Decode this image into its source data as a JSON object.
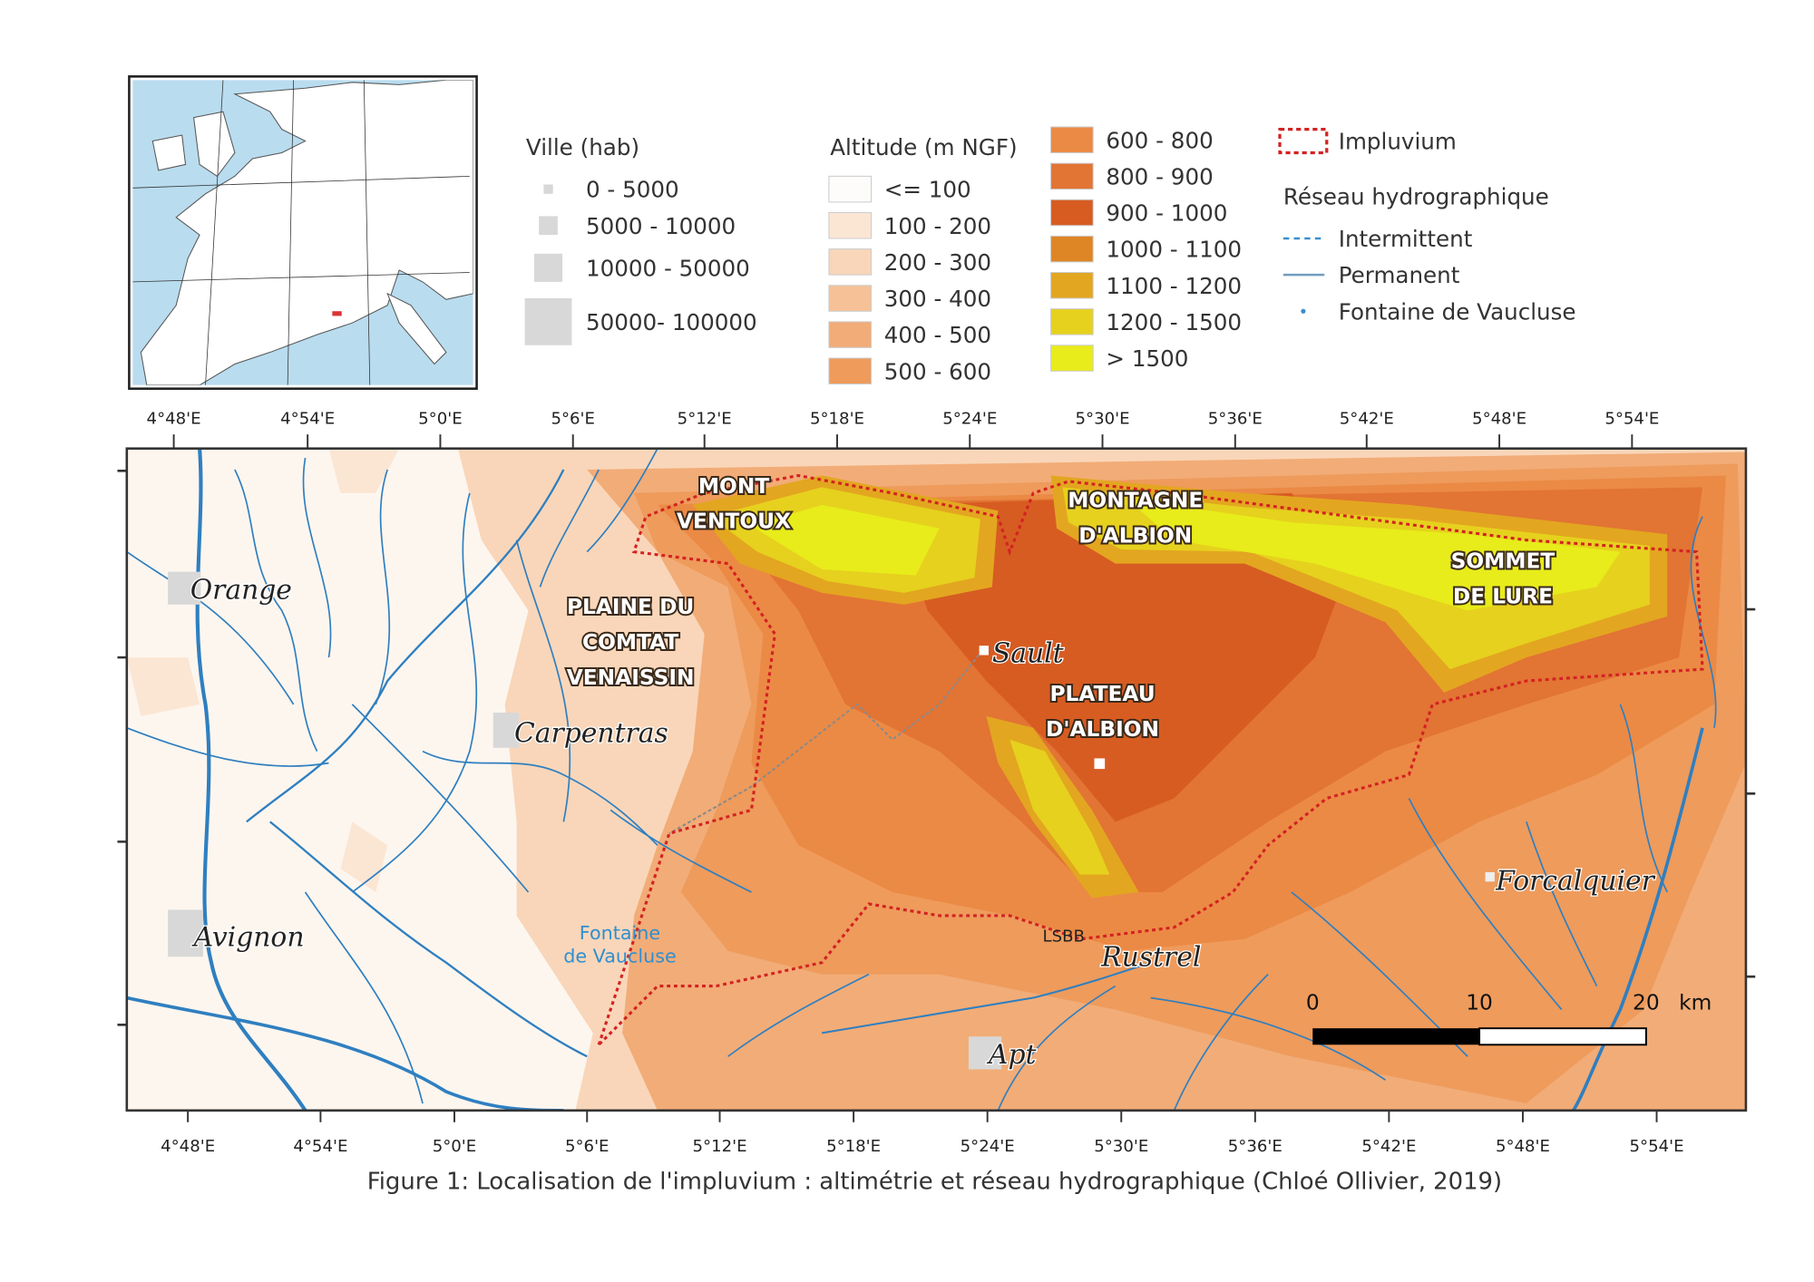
{
  "legend": {
    "ville": {
      "title": "Ville (hab)",
      "classes": [
        "0 - 5000",
        "5000 - 10000",
        "10000 - 50000",
        "50000- 100000"
      ]
    },
    "altitude": {
      "title": "Altitude (m NGF)",
      "classes": [
        {
          "label": "<= 100",
          "color": "#fdfcfb"
        },
        {
          "label": "100 - 200",
          "color": "#fbe6d4"
        },
        {
          "label": "200 - 300",
          "color": "#f9d6b9"
        },
        {
          "label": "300 - 400",
          "color": "#f6c196"
        },
        {
          "label": "400 - 500",
          "color": "#f2ac77"
        },
        {
          "label": "500 - 600",
          "color": "#ee9b5c"
        },
        {
          "label": "600 - 800",
          "color": "#eb8a45"
        },
        {
          "label": "800 - 900",
          "color": "#e27434"
        },
        {
          "label": "900 - 1000",
          "color": "#d75c22"
        },
        {
          "label": "1000 - 1100",
          "color": "#de8526"
        },
        {
          "label": "1100 - 1200",
          "color": "#e3a620"
        },
        {
          "label": "1200 - 1500",
          "color": "#e6d11e"
        },
        {
          "label": "> 1500",
          "color": "#e8ec1a"
        }
      ]
    },
    "impluvium": "Impluvium",
    "reseau": {
      "title": "Réseau hydrographique",
      "items": [
        "Intermittent",
        "Permanent",
        "Fontaine de Vaucluse"
      ]
    }
  },
  "map": {
    "lon_ticks": [
      "4°48'E",
      "4°54'E",
      "5°0'E",
      "5°6'E",
      "5°12'E",
      "5°18'E",
      "5°24'E",
      "5°30'E",
      "5°36'E",
      "5°42'E",
      "5°48'E",
      "5°54'E"
    ],
    "places": [
      "Orange",
      "Carpentras",
      "Avignon",
      "Sault",
      "Rustrel",
      "Apt",
      "Forcalquier",
      "LSBB"
    ],
    "fontaine": [
      "Fontaine",
      "de Vaucluse"
    ],
    "regions": [
      [
        "MONT",
        "VENTOUX"
      ],
      [
        "PLAINE DU",
        "COMTAT",
        "VENAISSIN"
      ],
      [
        "MONTAGNE",
        "D'ALBION"
      ],
      [
        "SOMMET",
        "DE LURE"
      ],
      [
        "PLATEAU",
        "D'ALBION"
      ]
    ],
    "scale": {
      "labels": [
        "0",
        "10",
        "20"
      ],
      "unit": "km"
    }
  },
  "caption": "Figure 1: Localisation de l'impluvium : altimétrie et réseau hydrographique (Chloé Ollivier, 2019)"
}
